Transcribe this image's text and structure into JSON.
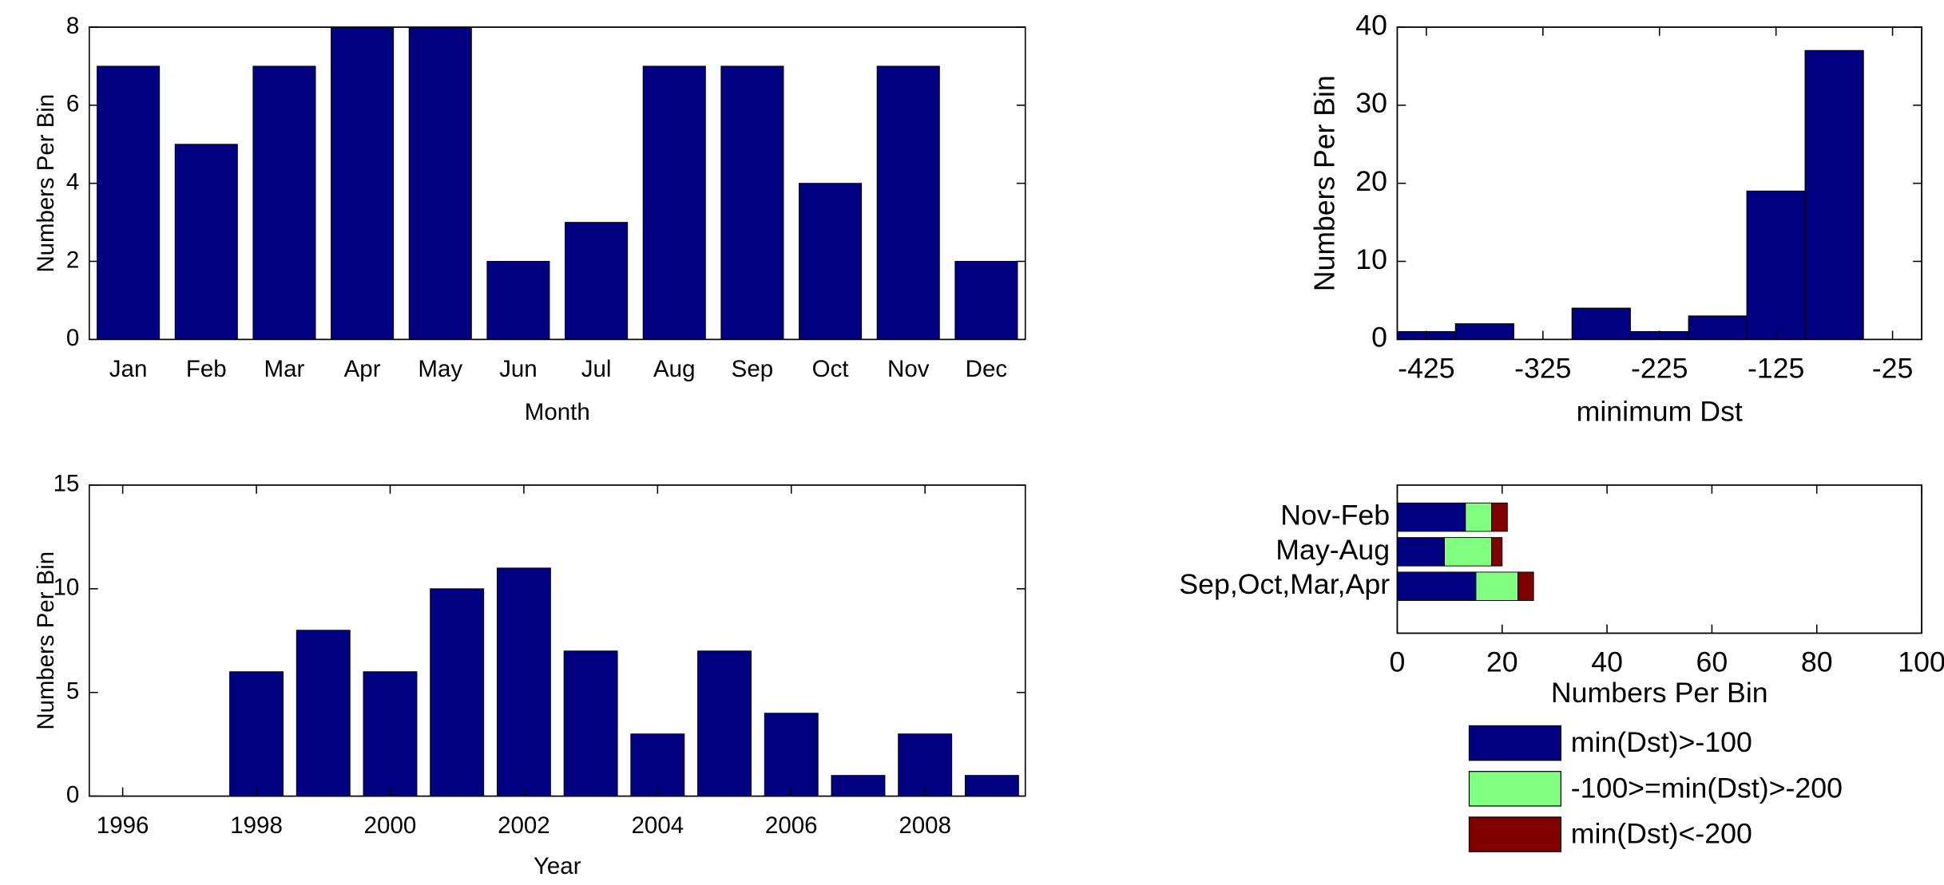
{
  "chart_data": [
    {
      "type": "bar",
      "categories": [
        "Jan",
        "Feb",
        "Mar",
        "Apr",
        "May",
        "Jun",
        "Jul",
        "Aug",
        "Sep",
        "Oct",
        "Nov",
        "Dec"
      ],
      "values": [
        7,
        5,
        7,
        8,
        8,
        2,
        3,
        7,
        7,
        4,
        7,
        2
      ],
      "color": "#000080",
      "ylim": [
        0,
        8
      ],
      "yticks": [
        0,
        2,
        4,
        6,
        8
      ],
      "xlabel": "Month",
      "ylabel": "Numbers Per Bin"
    },
    {
      "type": "histogram",
      "bins": [
        -450,
        -400,
        -350,
        -300,
        -250,
        -200,
        -150,
        -100,
        -50
      ],
      "values": [
        1,
        2,
        0,
        4,
        1,
        3,
        19,
        37
      ],
      "color": "#000080",
      "xlim": [
        -450,
        0
      ],
      "xticks": [
        -425,
        -325,
        -225,
        -125,
        -25
      ],
      "ylim": [
        0,
        40
      ],
      "yticks": [
        0,
        10,
        20,
        30,
        40
      ],
      "xlabel": "minimum Dst",
      "ylabel": "Numbers Per Bin"
    },
    {
      "type": "bar",
      "x": [
        1996,
        1997,
        1998,
        1999,
        2000,
        2001,
        2002,
        2003,
        2004,
        2005,
        2006,
        2007,
        2008,
        2009
      ],
      "values": [
        0,
        0,
        6,
        8,
        6,
        10,
        11,
        7,
        3,
        7,
        4,
        1,
        3,
        1
      ],
      "color": "#000080",
      "xlim": [
        1995.5,
        2009.5
      ],
      "xticks": [
        1996,
        1998,
        2000,
        2002,
        2004,
        2006,
        2008
      ],
      "ylim": [
        0,
        15
      ],
      "yticks": [
        0,
        5,
        10,
        15
      ],
      "xlabel": "Year",
      "ylabel": "Numbers Per Bin"
    },
    {
      "type": "barh-stacked",
      "categories": [
        "Nov-Feb",
        "May-Aug",
        "Sep,Oct,Mar,Apr"
      ],
      "series": [
        {
          "name": "min(Dst)>-100",
          "color": "#000080",
          "values": [
            13,
            9,
            15
          ]
        },
        {
          "name": "-100>=min(Dst)>-200",
          "color": "#80ff80",
          "values": [
            5,
            9,
            8
          ]
        },
        {
          "name": "min(Dst)<-200",
          "color": "#800000",
          "values": [
            3,
            2,
            3
          ]
        }
      ],
      "xlim": [
        0,
        100
      ],
      "xticks": [
        0,
        20,
        40,
        60,
        80,
        100
      ],
      "xlabel": "Numbers Per Bin",
      "legend": "bottom"
    }
  ]
}
